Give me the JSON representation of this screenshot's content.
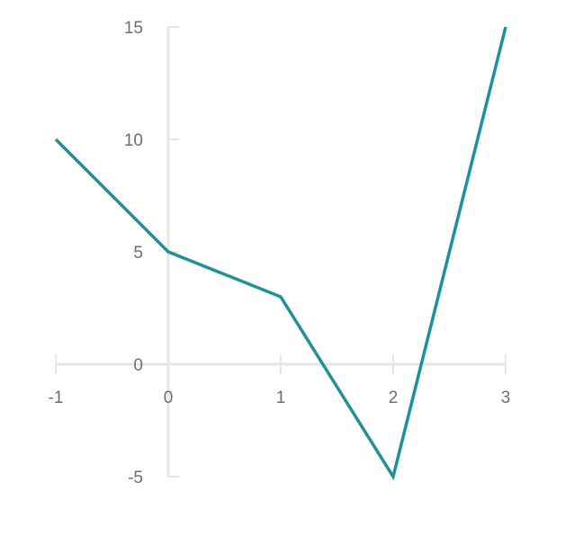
{
  "chart_data": {
    "type": "line",
    "title": "",
    "xlabel": "",
    "ylabel": "",
    "xlim": [
      -1,
      3
    ],
    "ylim": [
      -5,
      15
    ],
    "x_ticks": [
      -1,
      0,
      1,
      2,
      3
    ],
    "y_ticks": [
      -5,
      0,
      5,
      10,
      15
    ],
    "x_tick_labels": [
      "-1",
      "0",
      "1",
      "2",
      "3"
    ],
    "y_tick_labels": [
      "-5",
      "0",
      "5",
      "10",
      "15"
    ],
    "grid": false,
    "legend": "none",
    "series": [
      {
        "x": [
          -1,
          0,
          1,
          2,
          3
        ],
        "values": [
          10,
          5,
          3,
          -5,
          15
        ],
        "color": "#1f9197"
      }
    ]
  }
}
